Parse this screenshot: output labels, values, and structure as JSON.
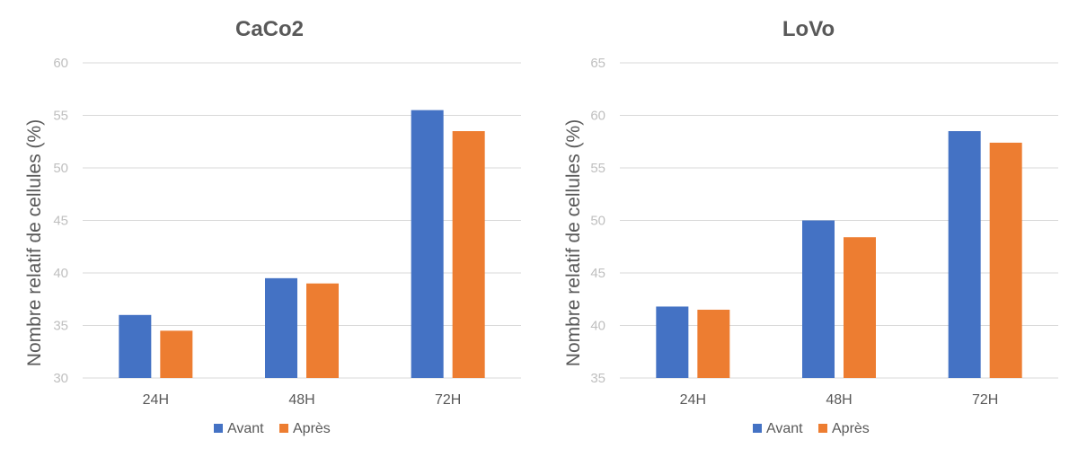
{
  "chart_data": [
    {
      "type": "bar",
      "title": "CaCo2",
      "ylabel": "Nombre relatif de cellules (%)",
      "xlabel": "",
      "categories": [
        "24H",
        "48H",
        "72H"
      ],
      "ylim": [
        30,
        60
      ],
      "yticks": [
        30,
        35,
        40,
        45,
        50,
        55,
        60
      ],
      "grid": true,
      "legend": "bottom",
      "series": [
        {
          "name": "Avant",
          "color": "#4472C4",
          "values": [
            36,
            39.5,
            55.5
          ]
        },
        {
          "name": "Après",
          "color": "#ED7D31",
          "values": [
            34.5,
            39,
            53.5
          ]
        }
      ]
    },
    {
      "type": "bar",
      "title": "LoVo",
      "ylabel": "Nombre relatif de cellules (%)",
      "xlabel": "",
      "categories": [
        "24H",
        "48H",
        "72H"
      ],
      "ylim": [
        35,
        65
      ],
      "yticks": [
        35,
        40,
        45,
        50,
        55,
        60,
        65
      ],
      "grid": true,
      "legend": "bottom",
      "series": [
        {
          "name": "Avant",
          "color": "#4472C4",
          "values": [
            41.8,
            50,
            58.5
          ]
        },
        {
          "name": "Après",
          "color": "#ED7D31",
          "values": [
            41.5,
            48.4,
            57.4
          ]
        }
      ]
    }
  ]
}
